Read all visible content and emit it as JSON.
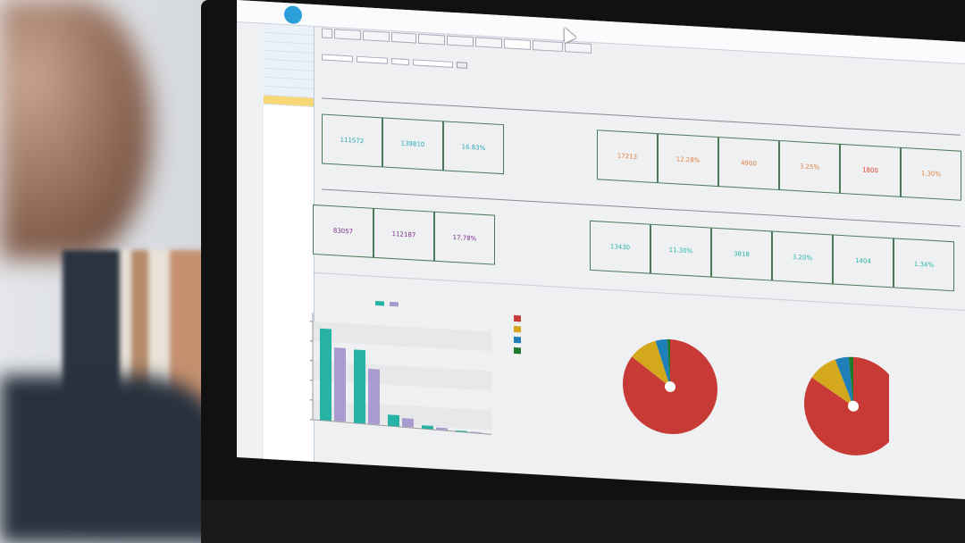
{
  "app": {
    "title": "",
    "user": ""
  },
  "row1": {
    "left_cards": [
      {
        "value": "111572",
        "color": "#2aa8b8"
      },
      {
        "value": "139810",
        "color": "#2aa8b8"
      },
      {
        "value": "16.83%",
        "color": "#2aa8b8"
      }
    ],
    "right_cards": [
      {
        "value": "17213",
        "color": "#e08040"
      },
      {
        "value": "12.28%",
        "color": "#e08040"
      },
      {
        "value": "4900",
        "color": "#e08040"
      },
      {
        "value": "3.25%",
        "color": "#e08040"
      },
      {
        "value": "1800",
        "color": "#e04030"
      },
      {
        "value": "1.30%",
        "color": "#e08040"
      }
    ]
  },
  "row2": {
    "left_cards": [
      {
        "value": "83057",
        "color": "#7a2a8a"
      },
      {
        "value": "112187",
        "color": "#7a2a8a"
      },
      {
        "value": "17.78%",
        "color": "#7a2a8a"
      }
    ],
    "right_cards": [
      {
        "value": "13430",
        "color": "#2ab8a8"
      },
      {
        "value": "11.30%",
        "color": "#2ab8a8"
      },
      {
        "value": "3818",
        "color": "#2ab8a8"
      },
      {
        "value": "3.20%",
        "color": "#2ab8a8"
      },
      {
        "value": "1404",
        "color": "#2ab8a8"
      },
      {
        "value": "1.34%",
        "color": "#2ab8a8"
      }
    ]
  },
  "colors": {
    "accent": "#2a9fd8",
    "teal": "#26b3a5",
    "purple": "#a99bd0",
    "pie": [
      "#c73a35",
      "#d4a81c",
      "#1f7fb8",
      "#1d7a2a"
    ]
  },
  "chart_data": [
    {
      "type": "bar",
      "series": [
        {
          "color": "#26b3a5",
          "values": [
            140000,
            112000,
            17000,
            5000,
            1500
          ]
        },
        {
          "color": "#a99bd0",
          "values": [
            112000,
            84000,
            13000,
            3000,
            1000
          ]
        }
      ],
      "ylim": [
        0,
        150000
      ],
      "grid": true,
      "legend": "top"
    },
    {
      "type": "pie",
      "values": [
        85,
        10,
        4,
        1
      ],
      "legend": "top-left"
    },
    {
      "type": "pie",
      "values": [
        84,
        10,
        4.5,
        1.5
      ]
    }
  ]
}
